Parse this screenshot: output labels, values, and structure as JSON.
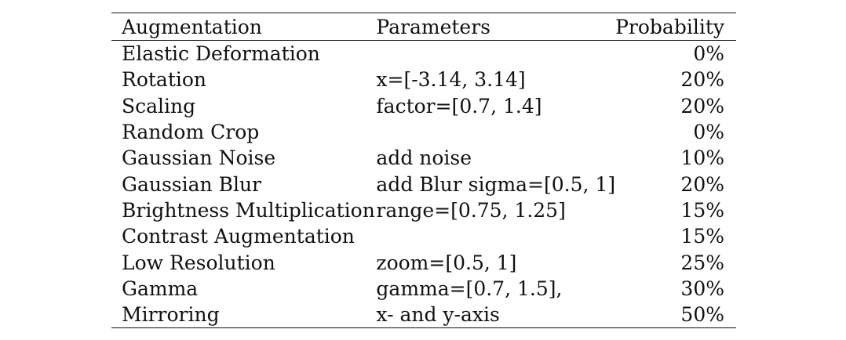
{
  "table": {
    "headers": {
      "augmentation": "Augmentation",
      "parameters": "Parameters",
      "probability": "Probability"
    },
    "rows": [
      {
        "augmentation": "Elastic Deformation",
        "parameters": "",
        "probability": "0%"
      },
      {
        "augmentation": "Rotation",
        "parameters": "x=[-3.14, 3.14]",
        "probability": "20%"
      },
      {
        "augmentation": "Scaling",
        "parameters": "factor=[0.7, 1.4]",
        "probability": "20%"
      },
      {
        "augmentation": "Random Crop",
        "parameters": "",
        "probability": "0%"
      },
      {
        "augmentation": "Gaussian Noise",
        "parameters": "add noise",
        "probability": "10%"
      },
      {
        "augmentation": "Gaussian Blur",
        "parameters": "add Blur sigma=[0.5, 1]",
        "probability": "20%"
      },
      {
        "augmentation": "Brightness Multiplication",
        "parameters": "range=[0.75, 1.25]",
        "probability": "15%"
      },
      {
        "augmentation": "Contrast Augmentation",
        "parameters": "",
        "probability": "15%"
      },
      {
        "augmentation": "Low Resolution",
        "parameters": "zoom=[0.5, 1]",
        "probability": "25%"
      },
      {
        "augmentation": "Gamma",
        "parameters": "gamma=[0.7, 1.5],",
        "probability": "30%"
      },
      {
        "augmentation": "Mirroring",
        "parameters": "x- and y-axis",
        "probability": "50%"
      }
    ]
  }
}
